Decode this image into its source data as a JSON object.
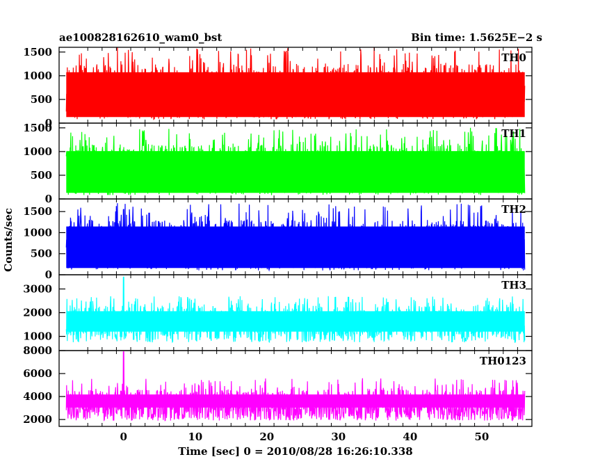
{
  "chart_data": {
    "type": "line",
    "title_left": "ae100828162610_wam0_bst",
    "title_right": "Bin time: 1.5625E−2 s",
    "xlabel": "Time [sec] 0 = 2010/08/28 16:26:10.338",
    "ylabel": "Counts/sec",
    "xlim": [
      -9,
      57
    ],
    "x_ticks": [
      0,
      10,
      20,
      30,
      40,
      50
    ],
    "x_range_data": [
      -8,
      56
    ],
    "grid": false,
    "panels": [
      {
        "name": "TH0",
        "color": "#ff0000",
        "ylim": [
          0,
          1600
        ],
        "ticks": [
          0,
          500,
          1000,
          1500
        ],
        "mean": 620,
        "low": 80,
        "high": 1250,
        "peak": 1600,
        "spike": null
      },
      {
        "name": "TH1",
        "color": "#00ff00",
        "ylim": [
          0,
          1600
        ],
        "ticks": [
          0,
          500,
          1000,
          1500
        ],
        "mean": 650,
        "low": 80,
        "high": 1150,
        "peak": 1500,
        "spike": null
      },
      {
        "name": "TH2",
        "color": "#0000ff",
        "ylim": [
          0,
          1800
        ],
        "ticks": [
          0,
          500,
          1000,
          1500
        ],
        "mean": 750,
        "low": 100,
        "high": 1300,
        "peak": 1700,
        "spike": {
          "x": 0,
          "y": 1550
        }
      },
      {
        "name": "TH3",
        "color": "#00ffff",
        "ylim": [
          400,
          3600
        ],
        "ticks": [
          1000,
          2000,
          3000
        ],
        "mean": 1450,
        "low": 750,
        "high": 2300,
        "peak": 2700,
        "spike": {
          "x": 0,
          "y": 3500
        }
      },
      {
        "name": "TH0123",
        "color": "#ff00ff",
        "ylim": [
          1400,
          8000
        ],
        "ticks": [
          2000,
          4000,
          6000,
          8000
        ],
        "mean": 3100,
        "low": 1900,
        "high": 4600,
        "peak": 5600,
        "spike": {
          "x": 0,
          "y": 7900
        }
      }
    ]
  }
}
